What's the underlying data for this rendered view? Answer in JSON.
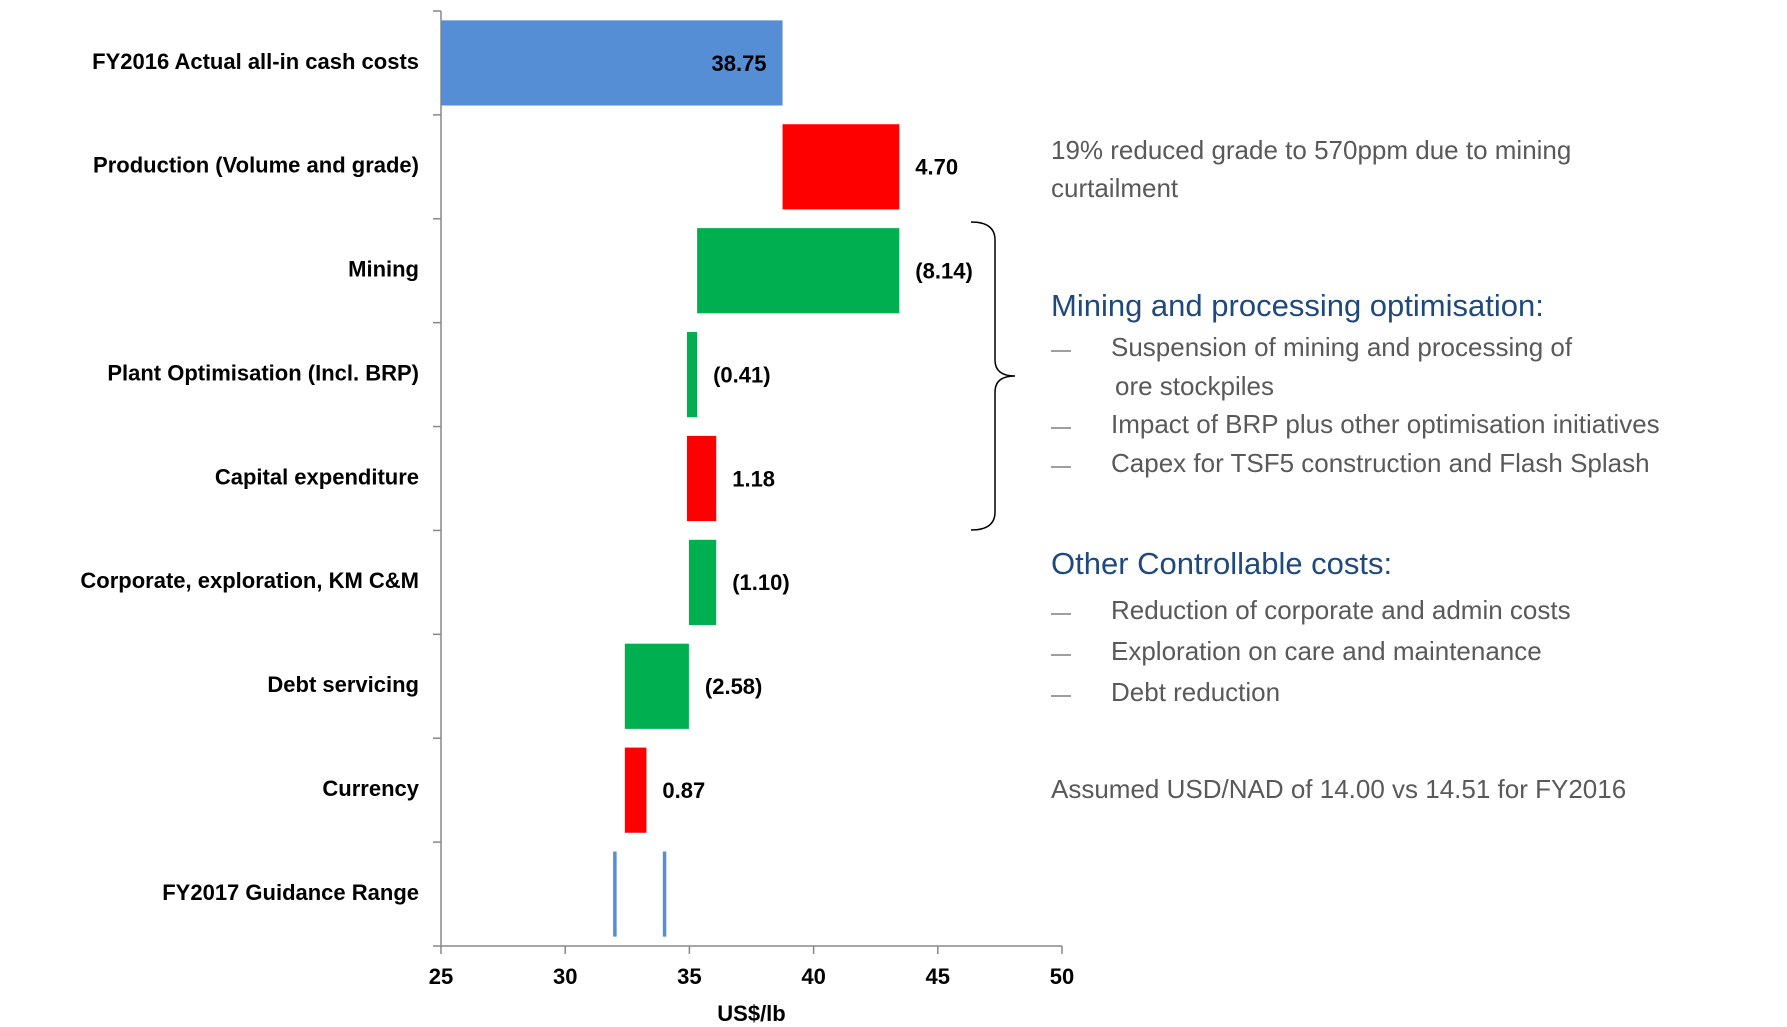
{
  "chart_data": {
    "type": "waterfall",
    "x_label": "US$/lb",
    "categories": [
      "FY2016 Actual all-in cash costs",
      "Production (Volume and grade)",
      "Mining",
      "Plant Optimisation (Incl. BRP)",
      "Capital expenditure",
      "Corporate, exploration, KM C&M",
      "Debt servicing",
      "Currency",
      "FY2017 Guidance Range"
    ],
    "values": [
      38.75,
      4.7,
      -8.14,
      -0.41,
      1.18,
      -1.1,
      -2.58,
      0.87,
      null
    ],
    "value_labels": [
      "38.75",
      "4.70",
      "(8.14)",
      "(0.41)",
      "1.18",
      "(1.10)",
      "(2.58)",
      "0.87",
      null
    ],
    "guidance_range": [
      32,
      34
    ],
    "colors": {
      "total": "#558ed5",
      "increase": "#ff0000",
      "decrease": "#00b050",
      "range": "#558ed5"
    },
    "xlim": [
      25,
      50
    ],
    "xticks": [
      25,
      30,
      35,
      40,
      45,
      50
    ]
  },
  "notes": {
    "production": [
      "19% reduced grade to 570ppm due to mining",
      "curtailment"
    ],
    "mining_heading": "Mining and processing optimisation:",
    "mining_items": [
      [
        "Suspension of mining and processing of",
        "ore stockpiles"
      ],
      [
        "Impact of BRP plus other optimisation initiatives"
      ],
      [
        "Capex for TSF5 construction and Flash Splash"
      ]
    ],
    "other_heading": "Other Controllable costs:",
    "other_items": [
      [
        "Reduction of corporate and admin costs"
      ],
      [
        "Exploration on care and maintenance"
      ],
      [
        "Debt reduction"
      ]
    ],
    "currency": "Assumed USD/NAD of 14.00 vs 14.51 for FY2016"
  }
}
